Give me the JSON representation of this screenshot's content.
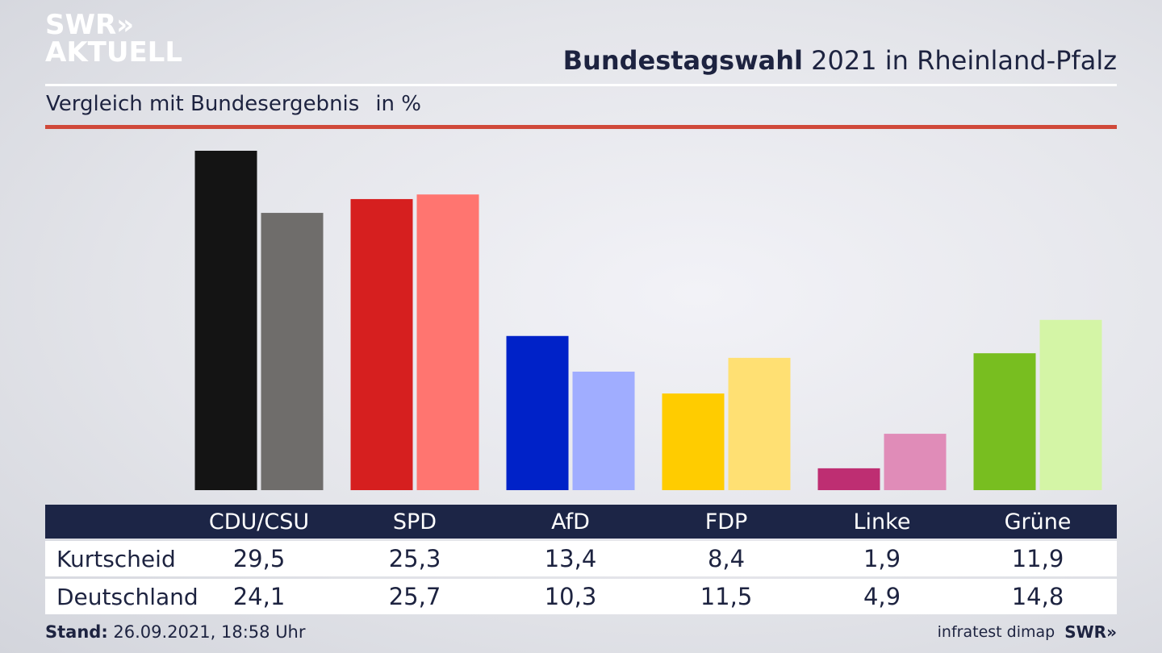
{
  "logo": {
    "line1": "SWR",
    "line2": "AKTUELL"
  },
  "header": {
    "title_bold": "Bundestagswahl",
    "title_rest": "2021 in Rheinland-Pfalz"
  },
  "subtitle": {
    "text": "Vergleich mit Bundesergebnis",
    "unit": "in %"
  },
  "footer": {
    "stand_label": "Stand:",
    "stand_value": "26.09.2021, 18:58 Uhr",
    "source": "infratest dimap",
    "brand": "SWR"
  },
  "colors": {
    "accent_red_rule": "#d0493a",
    "table_header": "#1c2546"
  },
  "chart_data": {
    "type": "bar",
    "title": "",
    "categories": [
      "CDU/CSU",
      "SPD",
      "AfD",
      "FDP",
      "Linke",
      "Grüne"
    ],
    "series": [
      {
        "name": "Kurtscheid",
        "values": [
          29.5,
          25.3,
          13.4,
          8.4,
          1.9,
          11.9
        ],
        "value_labels": [
          "29,5",
          "25,3",
          "13,4",
          "8,4",
          "1,9",
          "11,9"
        ],
        "colors": [
          "#141414",
          "#d61f1f",
          "#0022c8",
          "#ffcc00",
          "#be2e72",
          "#78be20"
        ]
      },
      {
        "name": "Deutschland",
        "values": [
          24.1,
          25.7,
          10.3,
          11.5,
          4.9,
          14.8
        ],
        "value_labels": [
          "24,1",
          "25,7",
          "10,3",
          "11,5",
          "4,9",
          "14,8"
        ],
        "colors": [
          "#6f6d6b",
          "#ff7570",
          "#a0adff",
          "#ffe073",
          "#e08cb8",
          "#d4f5a6"
        ]
      }
    ],
    "ylim": [
      0,
      29.5
    ],
    "grid": false,
    "legend": "table below chart"
  }
}
